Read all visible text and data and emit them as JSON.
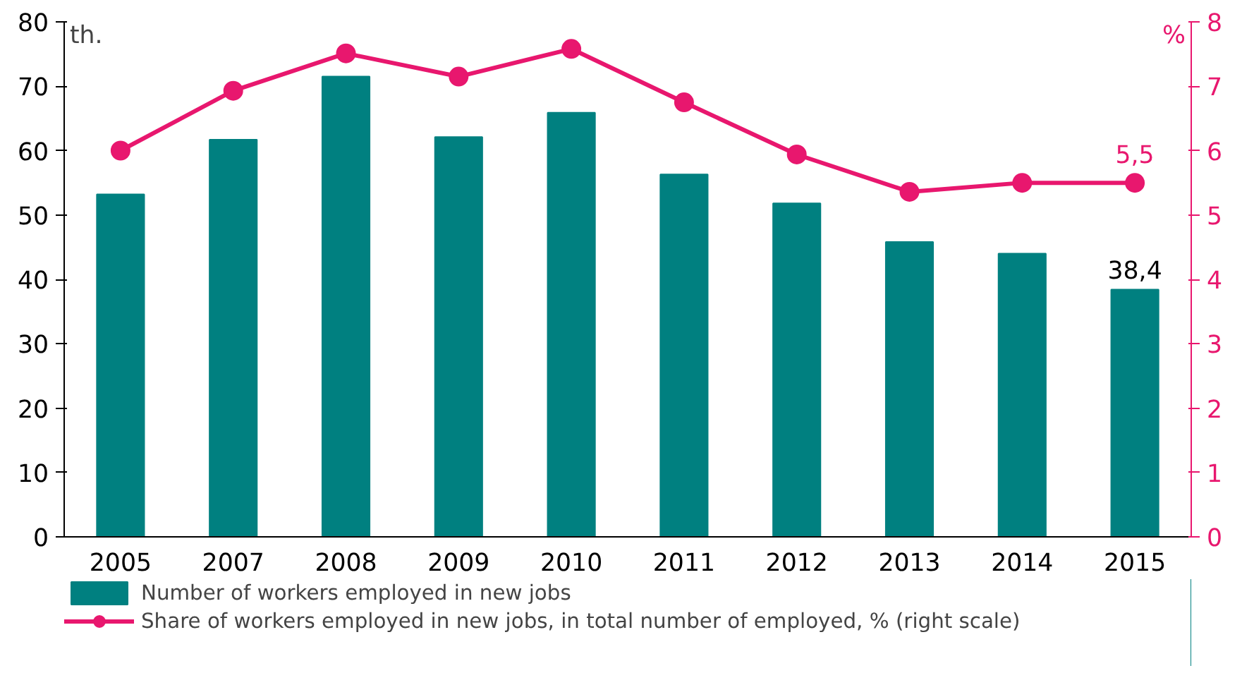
{
  "chart_data": {
    "type": "bar",
    "ylabel": "th.",
    "y2label": "%",
    "categories": [
      "2005",
      "2007",
      "2008",
      "2009",
      "2010",
      "2011",
      "2012",
      "2013",
      "2014",
      "2015"
    ],
    "series": [
      {
        "name": "Number of workers employed in new jobs",
        "color": "#008080",
        "values": [
          53.2,
          61.7,
          71.5,
          62.1,
          65.9,
          56.3,
          51.8,
          45.8,
          44.0,
          38.4
        ],
        "value_labels": [
          null,
          null,
          null,
          null,
          null,
          null,
          null,
          null,
          null,
          "38,4"
        ]
      },
      {
        "name": "Share of workers employed in new jobs, in total number of employed, % (right scale)",
        "type": "line",
        "axis": "y2",
        "color": "#e8176e",
        "marker": "circle",
        "values": [
          6.0,
          6.93,
          7.51,
          7.15,
          7.58,
          6.75,
          5.94,
          5.36,
          5.5,
          5.5
        ],
        "value_labels": [
          null,
          null,
          null,
          null,
          null,
          null,
          null,
          null,
          null,
          "5,5"
        ]
      }
    ],
    "ylim": [
      0,
      80
    ],
    "yticks": [
      0,
      10,
      20,
      30,
      40,
      50,
      60,
      70,
      80
    ],
    "y2lim": [
      0,
      8
    ],
    "y2ticks": [
      0,
      1,
      2,
      3,
      4,
      5,
      6,
      7,
      8
    ],
    "grid": false,
    "legend": "bottom"
  }
}
